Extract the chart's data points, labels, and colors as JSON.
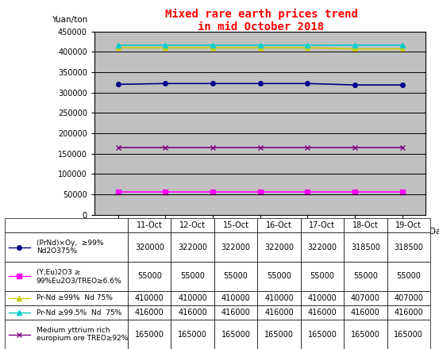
{
  "title": "Mixed rare earth prices trend\nin mid October 2018",
  "ylabel": "Yuan/ton",
  "xlabel": "Date",
  "dates": [
    "11-Oct",
    "12-Oct",
    "15-Oct",
    "16-Oct",
    "17-Oct",
    "18-Oct",
    "19-Oct"
  ],
  "series": [
    {
      "label": "(PrNd)×Oy,  ≥99%\nNd2O375%",
      "values": [
        320000,
        322000,
        322000,
        322000,
        322000,
        318500,
        318500
      ],
      "color": "#00008B",
      "marker": "o",
      "linestyle": "-",
      "markersize": 4
    },
    {
      "label": "(Y,Eu)2O3 ≥\n99%Eu2O3/TREO≥6.6%",
      "values": [
        55000,
        55000,
        55000,
        55000,
        55000,
        55000,
        55000
      ],
      "color": "#FF00FF",
      "marker": "s",
      "linestyle": "-",
      "markersize": 4
    },
    {
      "label": "Pr-Nd ≥99%  Nd 75%",
      "values": [
        410000,
        410000,
        410000,
        410000,
        410000,
        407000,
        407000
      ],
      "color": "#CCCC00",
      "marker": "^",
      "linestyle": "-",
      "markersize": 4
    },
    {
      "label": "Pr-Nd ≥99.5%  Nd  75%",
      "values": [
        416000,
        416000,
        416000,
        416000,
        416000,
        416000,
        416000
      ],
      "color": "#00CCCC",
      "marker": "^",
      "linestyle": "-",
      "markersize": 4
    },
    {
      "label": "Medium yttrium rich\neuropium ore TREO≥92%",
      "values": [
        165000,
        165000,
        165000,
        165000,
        165000,
        165000,
        165000
      ],
      "color": "#800080",
      "marker": "x",
      "linestyle": "-",
      "markersize": 5
    }
  ],
  "ylim": [
    0,
    450000
  ],
  "yticks": [
    0,
    50000,
    100000,
    150000,
    200000,
    250000,
    300000,
    350000,
    400000,
    450000
  ],
  "table_data": [
    [
      "320000",
      "322000",
      "322000",
      "322000",
      "322000",
      "318500",
      "318500"
    ],
    [
      "55000",
      "55000",
      "55000",
      "55000",
      "55000",
      "55000",
      "55000"
    ],
    [
      "410000",
      "410000",
      "410000",
      "410000",
      "410000",
      "407000",
      "407000"
    ],
    [
      "416000",
      "416000",
      "416000",
      "416000",
      "416000",
      "416000",
      "416000"
    ],
    [
      "165000",
      "165000",
      "165000",
      "165000",
      "165000",
      "165000",
      "165000"
    ]
  ],
  "row_labels": [
    "→ (PrNd)×Oy,  ≥99%\n    Nd2O375%",
    "→ (Y,Eu)2O3 ≥\n    99%Eu2O3/TREO≥6.6%",
    "→ Pr-Nd ≥99%  Nd 75%",
    "→ Pr-Nd ≥99.5%  Nd  75%",
    "→ Medium yttrium rich\n    europium ore TREO≥92%"
  ],
  "row_colors": [
    "#00008B",
    "#FF00FF",
    "#CCCC00",
    "#00CCCC",
    "#800080"
  ],
  "row_markers": [
    "o",
    "s",
    "^",
    "^",
    "x"
  ],
  "plot_bg": "#C0C0C0",
  "fig_bg": "#FFFFFF",
  "title_color": "#FF0000",
  "grid_color": "#000000",
  "figw": 5.53,
  "figh": 4.4,
  "dpi": 100
}
